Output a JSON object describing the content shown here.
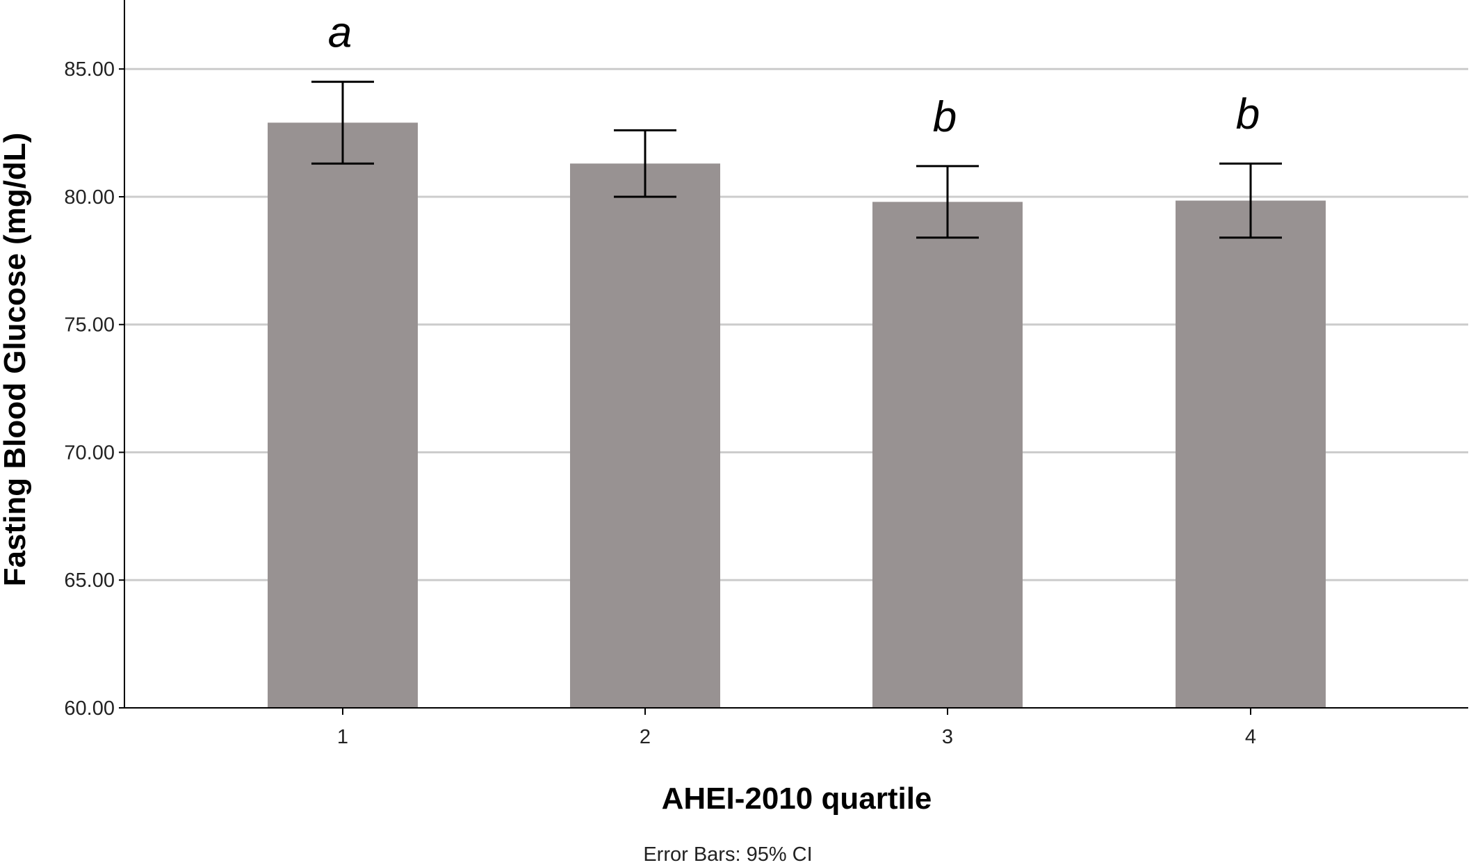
{
  "chart_data": {
    "type": "bar",
    "categories": [
      "1",
      "2",
      "3",
      "4"
    ],
    "values": [
      82.9,
      81.3,
      79.8,
      79.85
    ],
    "ci_lower": [
      81.3,
      80.0,
      78.4,
      78.4
    ],
    "ci_upper": [
      84.5,
      82.6,
      81.2,
      81.3
    ],
    "significance_labels": [
      "a",
      "",
      "b",
      "b"
    ],
    "xlabel": "AHEI-2010 quartile",
    "ylabel": "Fasting Blood Glucose (mg/dL)",
    "ylim": [
      60,
      87.7
    ],
    "yticks": [
      60,
      65,
      70,
      75,
      80,
      85
    ],
    "ytick_labels": [
      "60.00",
      "65.00",
      "70.00",
      "75.00",
      "80.00",
      "85.00"
    ],
    "footnote": "Error Bars: 95% CI",
    "grid": true,
    "colors": {
      "bar": "#989292",
      "error_bar": "#000000",
      "grid": "#cccccc",
      "axis": "#000000"
    }
  }
}
